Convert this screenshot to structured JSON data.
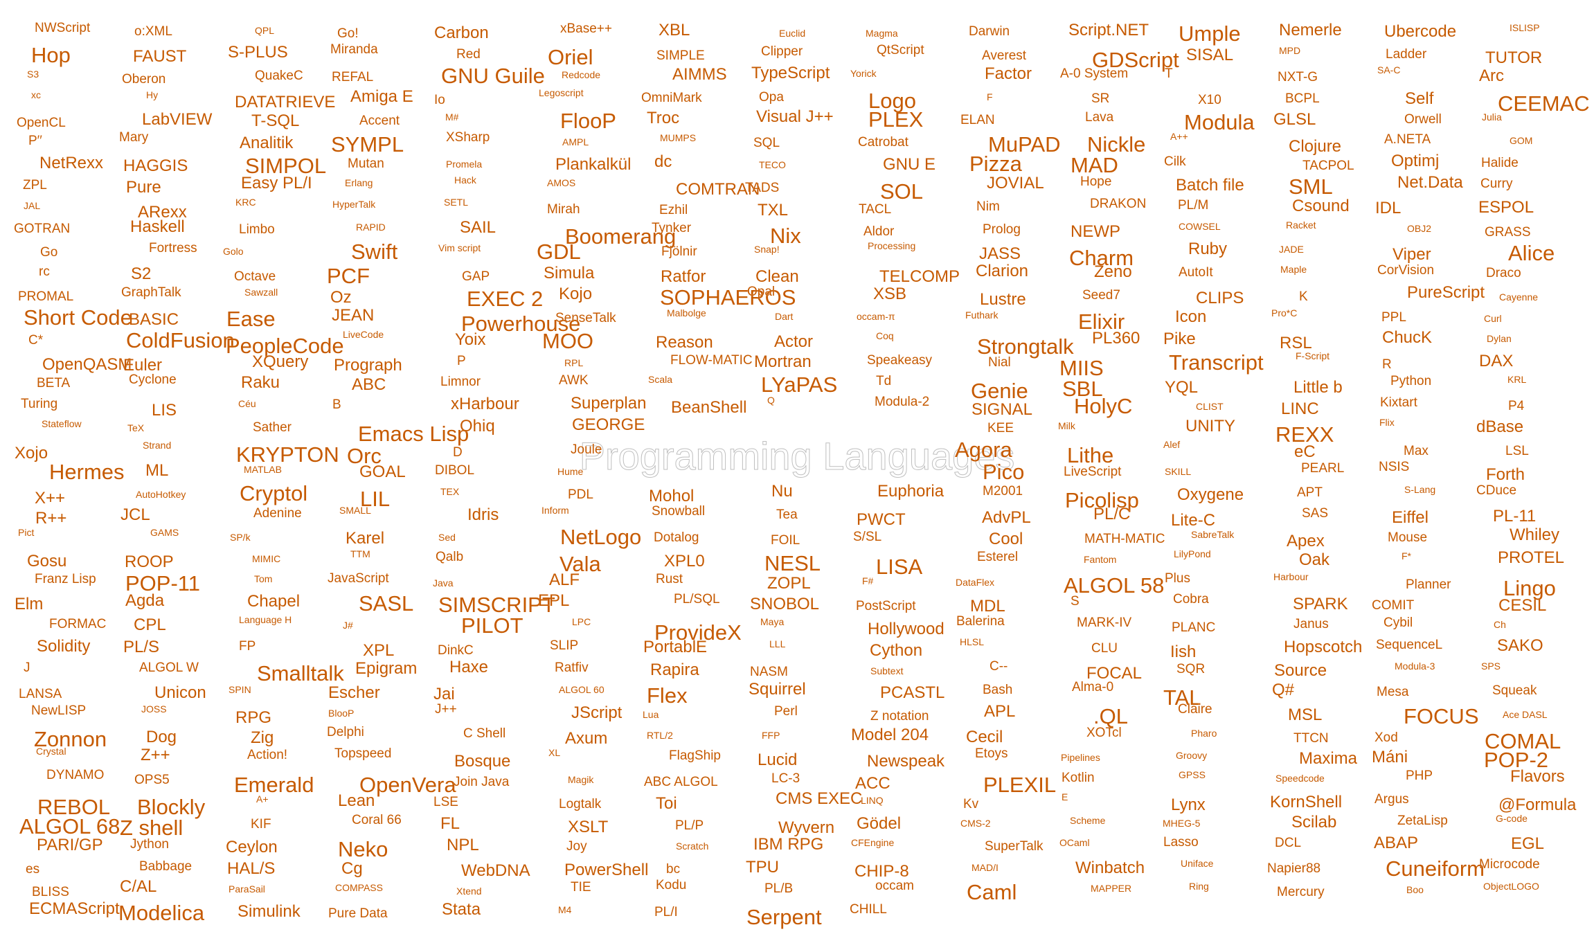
{
  "title": "Programming Languages",
  "colors": {
    "word": "#c65a00",
    "title_fill": "#ffffff",
    "title_outline": "#bfbfbf"
  },
  "words": [
    "NWScript",
    "o:XML",
    "QPL",
    "Go!",
    "Carbon",
    "xBase++",
    "XBL",
    "Euclid",
    "Magma",
    "Darwin",
    "Script.NET",
    "Umple",
    "Nemerle",
    "Ubercode",
    "ISLISP",
    "Hop",
    "FAUST",
    "S-PLUS",
    "Miranda",
    "Red",
    "Oriel",
    "SIMPLE",
    "Clipper",
    "QtScript",
    "Averest",
    "GDScript",
    "SISAL",
    "MPD",
    "Ladder",
    "TUTOR",
    "S3",
    "Oberon",
    "QuakeC",
    "REFAL",
    "GNU Guile",
    "Redcode",
    "AIMMS",
    "TypeScript",
    "Yorick",
    "Factor",
    "A-0 System",
    "T",
    "NXT-G",
    "SA-C",
    "Arc",
    "xc",
    "Hy",
    "DATATRIEVE",
    "Amiga E",
    "Io",
    "Legoscript",
    "OmniMark",
    "Opa",
    "Logo",
    "F",
    "SR",
    "X10",
    "BCPL",
    "Self",
    "CEEMAC",
    "OpenCL",
    "LabVIEW",
    "T-SQL",
    "Accent",
    "M#",
    "FlooP",
    "Troc",
    "Visual J++",
    "PLEX",
    "ELAN",
    "Lava",
    "Modula",
    "GLSL",
    "Orwell",
    "Julia",
    "P′′",
    "Mary",
    "Analitik",
    "SYMPL",
    "XSharp",
    "AMPL",
    "MUMPS",
    "SQL",
    "Catrobat",
    "MuPAD",
    "Nickle",
    "A++",
    "Clojure",
    "A.NETA",
    "GOM",
    "NetRexx",
    "HAGGIS",
    "SIMPOL",
    "Mutan",
    "Promela",
    "Plankalkül",
    "dc",
    "TECO",
    "GNU E",
    "Pizza",
    "MAD",
    "Cilk",
    "TACPOL",
    "Optimj",
    "Halide",
    "ZPL",
    "Pure",
    "Easy PL/I",
    "Erlang",
    "Hack",
    "AMOS",
    "COMTRAN",
    "TADS",
    "SOL",
    "JOVIAL",
    "Hope",
    "Batch file",
    "SML",
    "Net.Data",
    "Curry",
    "JAL",
    "ARexx",
    "KRC",
    "HyperTalk",
    "SETL",
    "Mirah",
    "Ezhil",
    "TXL",
    "TACL",
    "Nim",
    "DRAKON",
    "PL/M",
    "Csound",
    "IDL",
    "ESPOL",
    "GOTRAN",
    "Haskell",
    "Limbo",
    "RAPID",
    "SAIL",
    "Boomerang",
    "Tynker",
    "Nix",
    "Aldor",
    "Prolog",
    "NEWP",
    "COWSEL",
    "Racket",
    "OBJ2",
    "GRASS",
    "Go",
    "Fortress",
    "Golo",
    "Swift",
    "Vim script",
    "GDL",
    "Fjölnir",
    "Snap!",
    "Processing",
    "JASS",
    "Charm",
    "Ruby",
    "JADE",
    "Viper",
    "Alice",
    "rc",
    "S2",
    "Octave",
    "PCF",
    "GAP",
    "Simula",
    "Ratfor",
    "Clean",
    "TELCOMP",
    "Clarion",
    "Zeno",
    "AutoIt",
    "Maple",
    "CorVision",
    "Draco",
    "PROMAL",
    "GraphTalk",
    "Sawzall",
    "Oz",
    "EXEC 2",
    "Kojo",
    "SOPHAEROS",
    "Opal",
    "XSB",
    "Lustre",
    "Seed7",
    "CLIPS",
    "K",
    "PureScript",
    "Cayenne",
    "Short Code",
    "BASIC",
    "Ease",
    "JEAN",
    "Powerhouse",
    "SenseTalk",
    "Malbolge",
    "Dart",
    "occam-π",
    "Futhark",
    "Elixir",
    "Icon",
    "Pro*C",
    "PPL",
    "Curl",
    "C*",
    "ColdFusion",
    "PeopleCode",
    "LiveCode",
    "Yoix",
    "MOO",
    "Reason",
    "Actor",
    "Coq",
    "Strongtalk",
    "PL360",
    "Pike",
    "RSL",
    "ChucK",
    "Dylan",
    "OpenQASM",
    "Euler",
    "XQuery",
    "Prograph",
    "P",
    "RPL",
    "FLOW-MATIC",
    "Mortran",
    "Speakeasy",
    "Nial",
    "MIIS",
    "Transcript",
    "F-Script",
    "R",
    "DAX",
    "BETA",
    "Cyclone",
    "Raku",
    "ABC",
    "Limnor",
    "AWK",
    "Scala",
    "LYaPAS",
    "Td",
    "Genie",
    "SBL",
    "YQL",
    "Little b",
    "Python",
    "KRL",
    "Turing",
    "LIS",
    "Céu",
    "B",
    "xHarbour",
    "Superplan",
    "BeanShell",
    "Q",
    "Modula-2",
    "SIGNAL",
    "HolyC",
    "CLIST",
    "LINC",
    "Kixtart",
    "P4",
    "Stateflow",
    "TeX",
    "Sather",
    "Emacs Lisp",
    "Ohiq",
    "GEORGE",
    "KEE",
    "Milk",
    "UNITY",
    "REXX",
    "Flix",
    "dBase",
    "Xojo",
    "Strand",
    "KRYPTON",
    "Orc",
    "D",
    "Joule",
    "Agora",
    "Lithe",
    "Alef",
    "eC",
    "Max",
    "LSL",
    "Hermes",
    "ML",
    "MATLAB",
    "GOAL",
    "DIBOL",
    "Hume",
    "Pico",
    "LiveScript",
    "SKILL",
    "PEARL",
    "NSIS",
    "Forth",
    "X++",
    "AutoHotkey",
    "Cryptol",
    "LIL",
    "TEX",
    "PDL",
    "Mohol",
    "Nu",
    "Euphoria",
    "M2001",
    "Picolisp",
    "Oxygene",
    "APT",
    "S-Lang",
    "CDuce",
    "R++",
    "JCL",
    "Adenine",
    "SMALL",
    "Idris",
    "Inform",
    "Snowball",
    "Tea",
    "PWCT",
    "AdvPL",
    "PL/C",
    "Lite-C",
    "SAS",
    "Eiffel",
    "PL-11",
    "Pict",
    "GAMS",
    "SP/k",
    "Karel",
    "Sed",
    "NetLogo",
    "Dotalog",
    "FOIL",
    "S/SL",
    "Cool",
    "MATH-MATIC",
    "SabreTalk",
    "Apex",
    "Mouse",
    "Whiley",
    "Gosu",
    "ROOP",
    "MIMIC",
    "TTM",
    "Qalb",
    "Vala",
    "XPL0",
    "NESL",
    "LISA",
    "Esterel",
    "Fantom",
    "LilyPond",
    "Oak",
    "F*",
    "PROTEL",
    "Franz Lisp",
    "POP-11",
    "Tom",
    "JavaScript",
    "Java",
    "ALF",
    "Rust",
    "ZOPL",
    "F#",
    "DataFlex",
    "ALGOL 58",
    "Plus",
    "Harbour",
    "Planner",
    "Lingo",
    "Elm",
    "Agda",
    "Chapel",
    "SASL",
    "SIMSCRIPT",
    "EPL",
    "PL/SQL",
    "SNOBOL",
    "PostScript",
    "MDL",
    "S",
    "Cobra",
    "SPARK",
    "COMIT",
    "CESIL",
    "FORMAC",
    "CPL",
    "Language H",
    "J#",
    "PILOT",
    "LPC",
    "ProvideX",
    "Maya",
    "Hollywood",
    "Balerina",
    "MARK-IV",
    "PLANC",
    "Janus",
    "Cybil",
    "Ch",
    "Solidity",
    "PL/S",
    "FP",
    "XPL",
    "DinkC",
    "SLIP",
    "PortablE",
    "LLL",
    "Cython",
    "HLSL",
    "CLU",
    "Iish",
    "Hopscotch",
    "SequenceL",
    "SAKO",
    "J",
    "ALGOL W",
    "Smalltalk",
    "Epigram",
    "Haxe",
    "Ratfiv",
    "Rapira",
    "NASM",
    "Subtext",
    "C--",
    "FOCAL",
    "SQR",
    "Source",
    "Modula-3",
    "SPS",
    "LANSA",
    "Unicon",
    "SPIN",
    "Escher",
    "Jai",
    "ALGOL 60",
    "Flex",
    "Squirrel",
    "PCASTL",
    "Bash",
    "Alma-0",
    "TAL",
    "Q#",
    "Mesa",
    "Squeak",
    "NewLISP",
    "JOSS",
    "RPG",
    "BlooP",
    "J++",
    "JScript",
    "Lua",
    "Perl",
    "Z notation",
    "APL",
    ".QL",
    "Claire",
    "MSL",
    "FOCUS",
    "Ace DASL",
    "Zonnon",
    "Dog",
    "Zig",
    "Delphi",
    "C Shell",
    "Axum",
    "RTL/2",
    "FFP",
    "Model 204",
    "Cecil",
    "XOTcl",
    "Pharo",
    "TTCN",
    "Xod",
    "COMAL",
    "Crystal",
    "Z++",
    "Action!",
    "Topspeed",
    "Bosque",
    "XL",
    "FlagShip",
    "Lucid",
    "Newspeak",
    "Etoys",
    "Pipelines",
    "Groovy",
    "Maxima",
    "Máni",
    "POP-2",
    "DYNAMO",
    "OPS5",
    "Emerald",
    "OpenVera",
    "Join Java",
    "Magik",
    "ABC ALGOL",
    "LC-3",
    "ACC",
    "PLEXIL",
    "Kotlin",
    "GPSS",
    "Speedcode",
    "PHP",
    "Flavors",
    "REBOL",
    "Blockly",
    "A+",
    "Lean",
    "LSE",
    "Logtalk",
    "Toi",
    "CMS EXEC",
    "LINQ",
    "Kv",
    "E",
    "Lynx",
    "KornShell",
    "Argus",
    "@Formula",
    "ALGOL 68",
    "Z shell",
    "KIF",
    "Coral 66",
    "FL",
    "XSLT",
    "PL/P",
    "Wyvern",
    "Gödel",
    "CMS-2",
    "Scheme",
    "MHEG-5",
    "Scilab",
    "ZetaLisp",
    "G-code",
    "PARI/GP",
    "Jython",
    "Ceylon",
    "Neko",
    "NPL",
    "Joy",
    "Scratch",
    "IBM RPG",
    "CFEngine",
    "SuperTalk",
    "OCaml",
    "Lasso",
    "DCL",
    "ABAP",
    "EGL",
    "es",
    "Babbage",
    "HAL/S",
    "Cg",
    "WebDNA",
    "PowerShell",
    "bc",
    "TPU",
    "CHIP-8",
    "MAD/I",
    "Winbatch",
    "Uniface",
    "Napier88",
    "Cuneiform",
    "Microcode",
    "BLISS",
    "C/AL",
    "ParaSail",
    "COMPASS",
    "Xtend",
    "TIE",
    "Kodu",
    "PL/B",
    "occam",
    "Caml",
    "MAPPER",
    "Ring",
    "Mercury",
    "Boo",
    "ObjectLOGO",
    "ECMAScript",
    "Modelica",
    "Simulink",
    "Pure Data",
    "Stata",
    "M4",
    "PL/I",
    "Serpent",
    "CHILL"
  ]
}
